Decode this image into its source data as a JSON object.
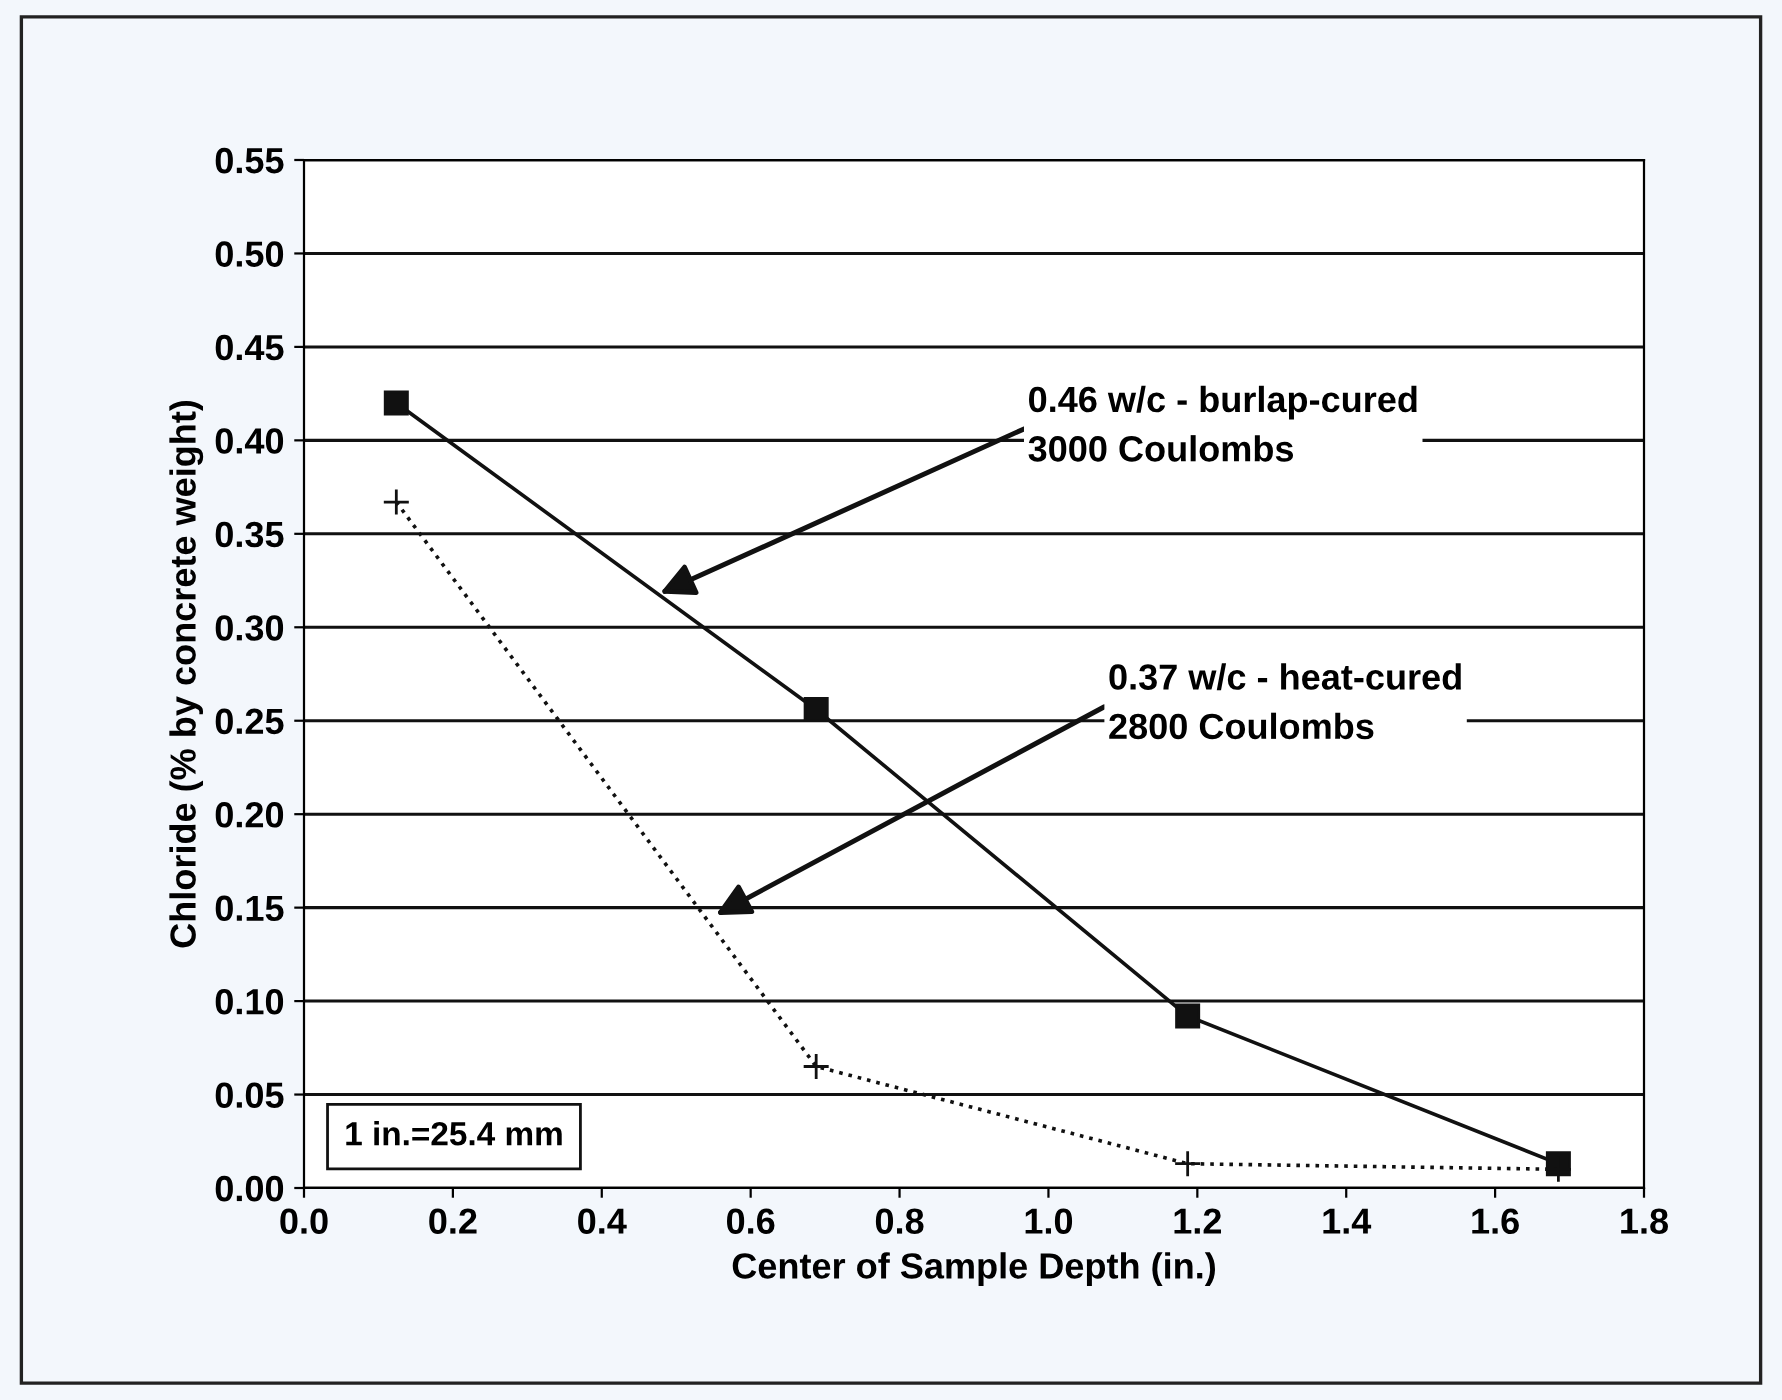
{
  "chart_data": {
    "type": "line",
    "xlabel": "Center of Sample Depth (in.)",
    "ylabel": "Chloride (% by concrete weight)",
    "x": [
      0.124,
      0.688,
      1.187,
      1.685
    ],
    "series": [
      {
        "color": "#111111",
        "values": [
          0.42,
          0.256,
          0.092,
          0.013
        ],
        "marker": "square",
        "line_style": "solid"
      },
      {
        "color": "#111111",
        "values": [
          0.367,
          0.065,
          0.013,
          0.01
        ],
        "marker": "cross",
        "line_style": "dotted"
      }
    ],
    "annotations": [
      {
        "text": "0.46 w/c - burlap-cured\n3000 Coulombs",
        "x": 0.478,
        "y": 0.318
      },
      {
        "text": "0.37 w/c - heat-cured\n2800 Coulombs",
        "x": 0.553,
        "y": 0.146
      },
      "1 in.=25.4 mm"
    ],
    "xlim": [
      0,
      1.8
    ],
    "xticks": [
      {
        "value": 0,
        "label": "0.0"
      },
      {
        "value": 0.2,
        "label": "0.2"
      },
      {
        "value": 0.4,
        "label": "0.4"
      },
      {
        "value": 0.6,
        "label": "0.6"
      },
      {
        "value": 0.8,
        "label": "0.8"
      },
      {
        "value": 1,
        "label": "1.0"
      },
      {
        "value": 1.2,
        "label": "1.2"
      },
      {
        "value": 1.4,
        "label": "1.4"
      },
      {
        "value": 1.6,
        "label": "1.6"
      },
      {
        "value": 1.8,
        "label": "1.8"
      }
    ],
    "ylim": [
      0,
      0.55
    ],
    "yticks": [
      {
        "value": 0,
        "label": "0.00"
      },
      {
        "value": 0.05,
        "label": "0.05"
      },
      {
        "value": 0.1,
        "label": "0.10"
      },
      {
        "value": 0.15,
        "label": "0.15"
      },
      {
        "value": 0.2,
        "label": "0.20"
      },
      {
        "value": 0.25,
        "label": "0.25"
      },
      {
        "value": 0.3,
        "label": "0.30"
      },
      {
        "value": 0.35,
        "label": "0.35"
      },
      {
        "value": 0.4,
        "label": "0.40"
      },
      {
        "value": 0.45,
        "label": "0.45"
      },
      {
        "value": 0.5,
        "label": "0.50"
      },
      {
        "value": 0.55,
        "label": "0.55"
      }
    ],
    "grid": "y"
  }
}
